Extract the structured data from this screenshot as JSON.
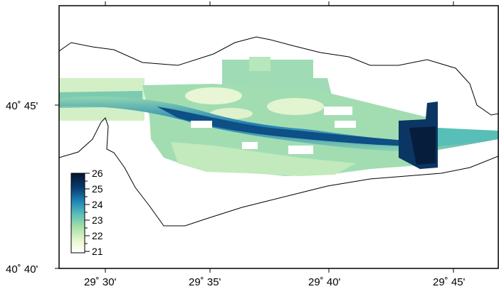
{
  "map": {
    "x_axis": {
      "labels": [
        "29˚ 30'",
        "29˚ 35'",
        "29˚ 40'",
        "29˚ 45'"
      ]
    },
    "y_axis": {
      "labels": [
        "40˚ 45'",
        "40˚ 40'"
      ]
    },
    "colorbar": {
      "min": 21,
      "max": 26,
      "labels": [
        "26",
        "25",
        "24",
        "23",
        "22",
        "21"
      ],
      "colors": [
        "#ffffff",
        "#e6f5c8",
        "#a8e0a8",
        "#5cc0b8",
        "#2088b8",
        "#0a3a6e",
        "#05152e"
      ]
    }
  }
}
